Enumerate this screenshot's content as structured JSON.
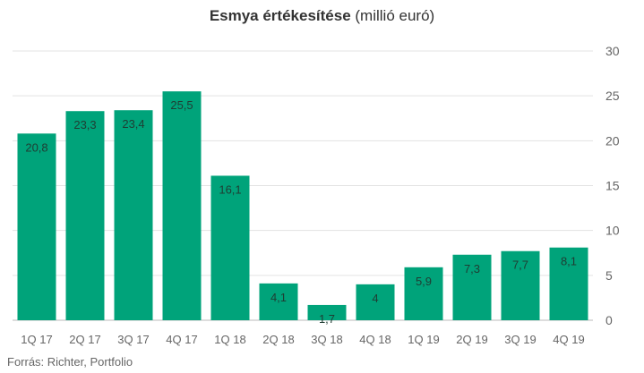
{
  "title": {
    "bold": "Esmya értékesítése",
    "regular": "(millió euró)"
  },
  "source": "Forrás: Richter, Portfolio",
  "chart_data": {
    "type": "bar",
    "title": "Esmya értékesítése (millió euró)",
    "categories": [
      "1Q 17",
      "2Q 17",
      "3Q 17",
      "4Q 17",
      "1Q 18",
      "2Q 18",
      "3Q 18",
      "4Q 18",
      "1Q 19",
      "2Q 19",
      "3Q 19",
      "4Q 19"
    ],
    "values": [
      20.8,
      23.3,
      23.4,
      25.5,
      16.1,
      4.1,
      1.7,
      4,
      5.9,
      7.3,
      7.7,
      8.1
    ],
    "value_labels": [
      "20,8",
      "23,3",
      "23,4",
      "25,5",
      "16,1",
      "4,1",
      "1,7",
      "4",
      "5,9",
      "7,3",
      "7,7",
      "8,1"
    ],
    "ylim": [
      0,
      30
    ],
    "yticks": [
      0,
      5,
      10,
      15,
      20,
      25,
      30
    ],
    "y_axis_side": "right",
    "grid": true,
    "bar_color": "#00a37a",
    "xlabel": "",
    "ylabel": ""
  }
}
